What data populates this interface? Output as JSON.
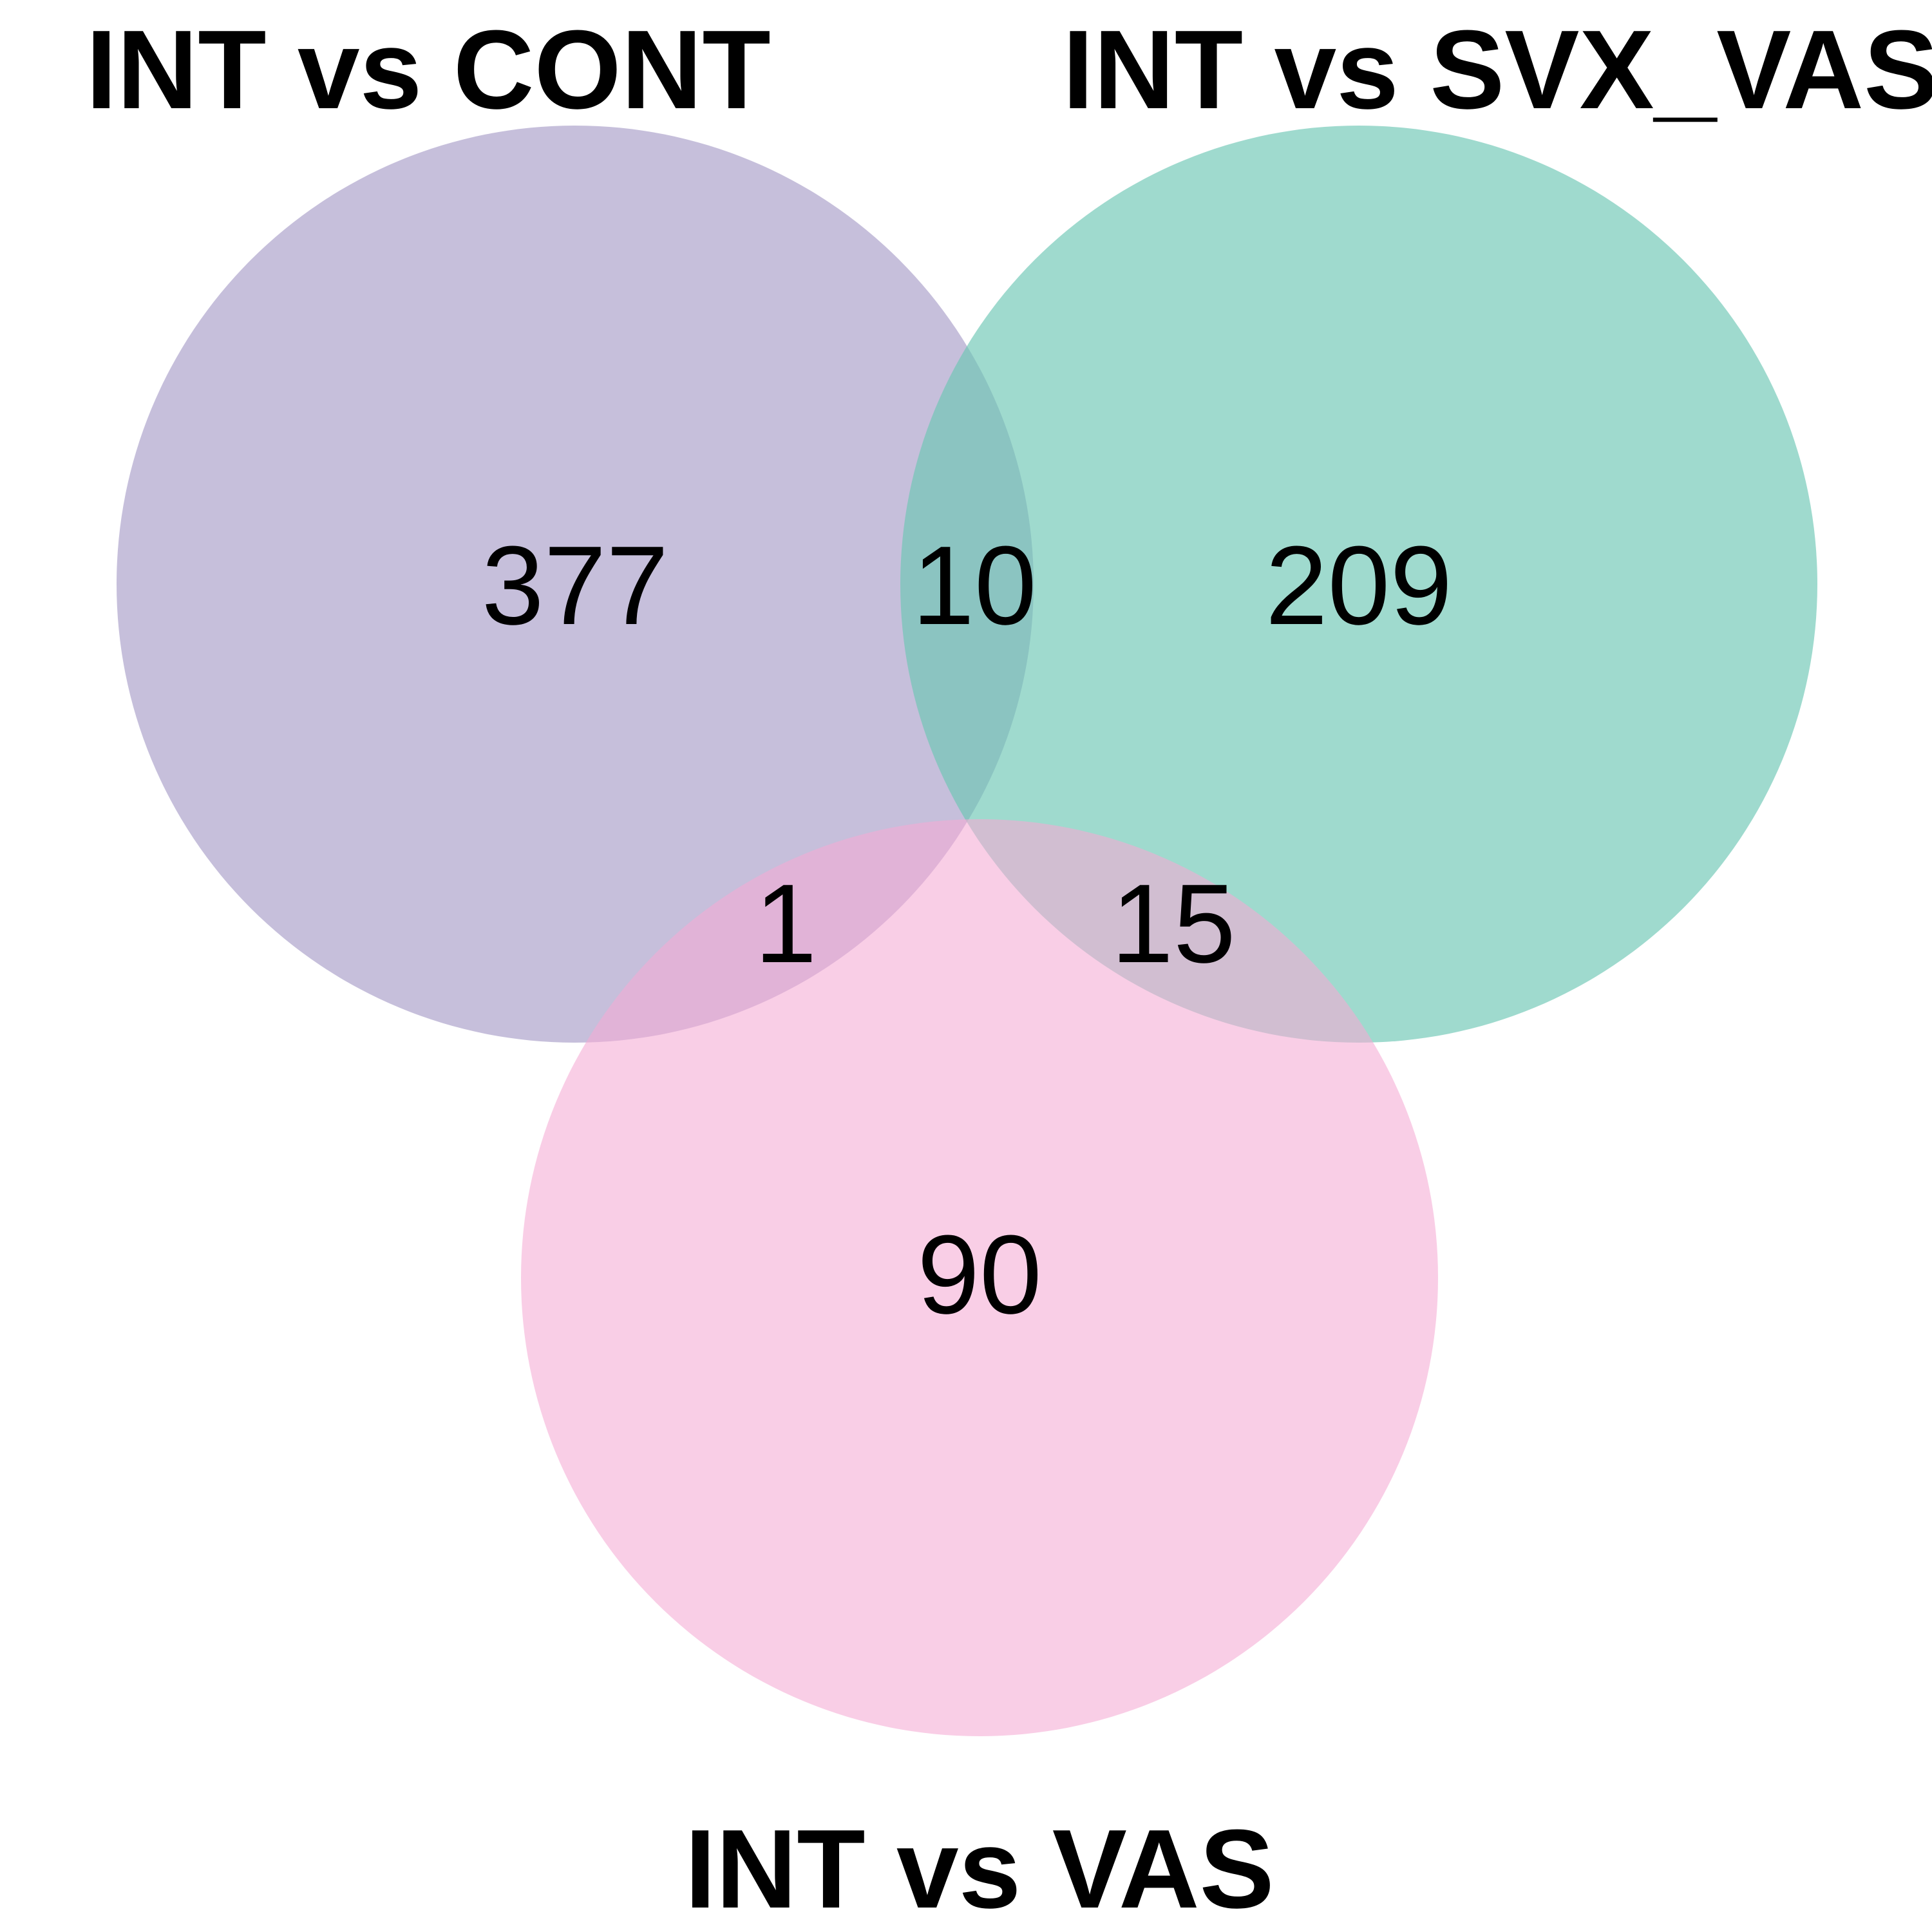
{
  "sets": [
    {
      "key": "A",
      "label": "INT vs CONT",
      "color": "#a89cc8"
    },
    {
      "key": "B",
      "label": "INT vs SVX_VAS",
      "color": "#6cc6b3"
    },
    {
      "key": "C",
      "label": "INT vs VAS",
      "color": "#f5aad4"
    }
  ],
  "regions": {
    "A_only": "377",
    "B_only": "209",
    "C_only": "90",
    "A_B": "10",
    "A_C": "1",
    "B_C": "15"
  }
}
